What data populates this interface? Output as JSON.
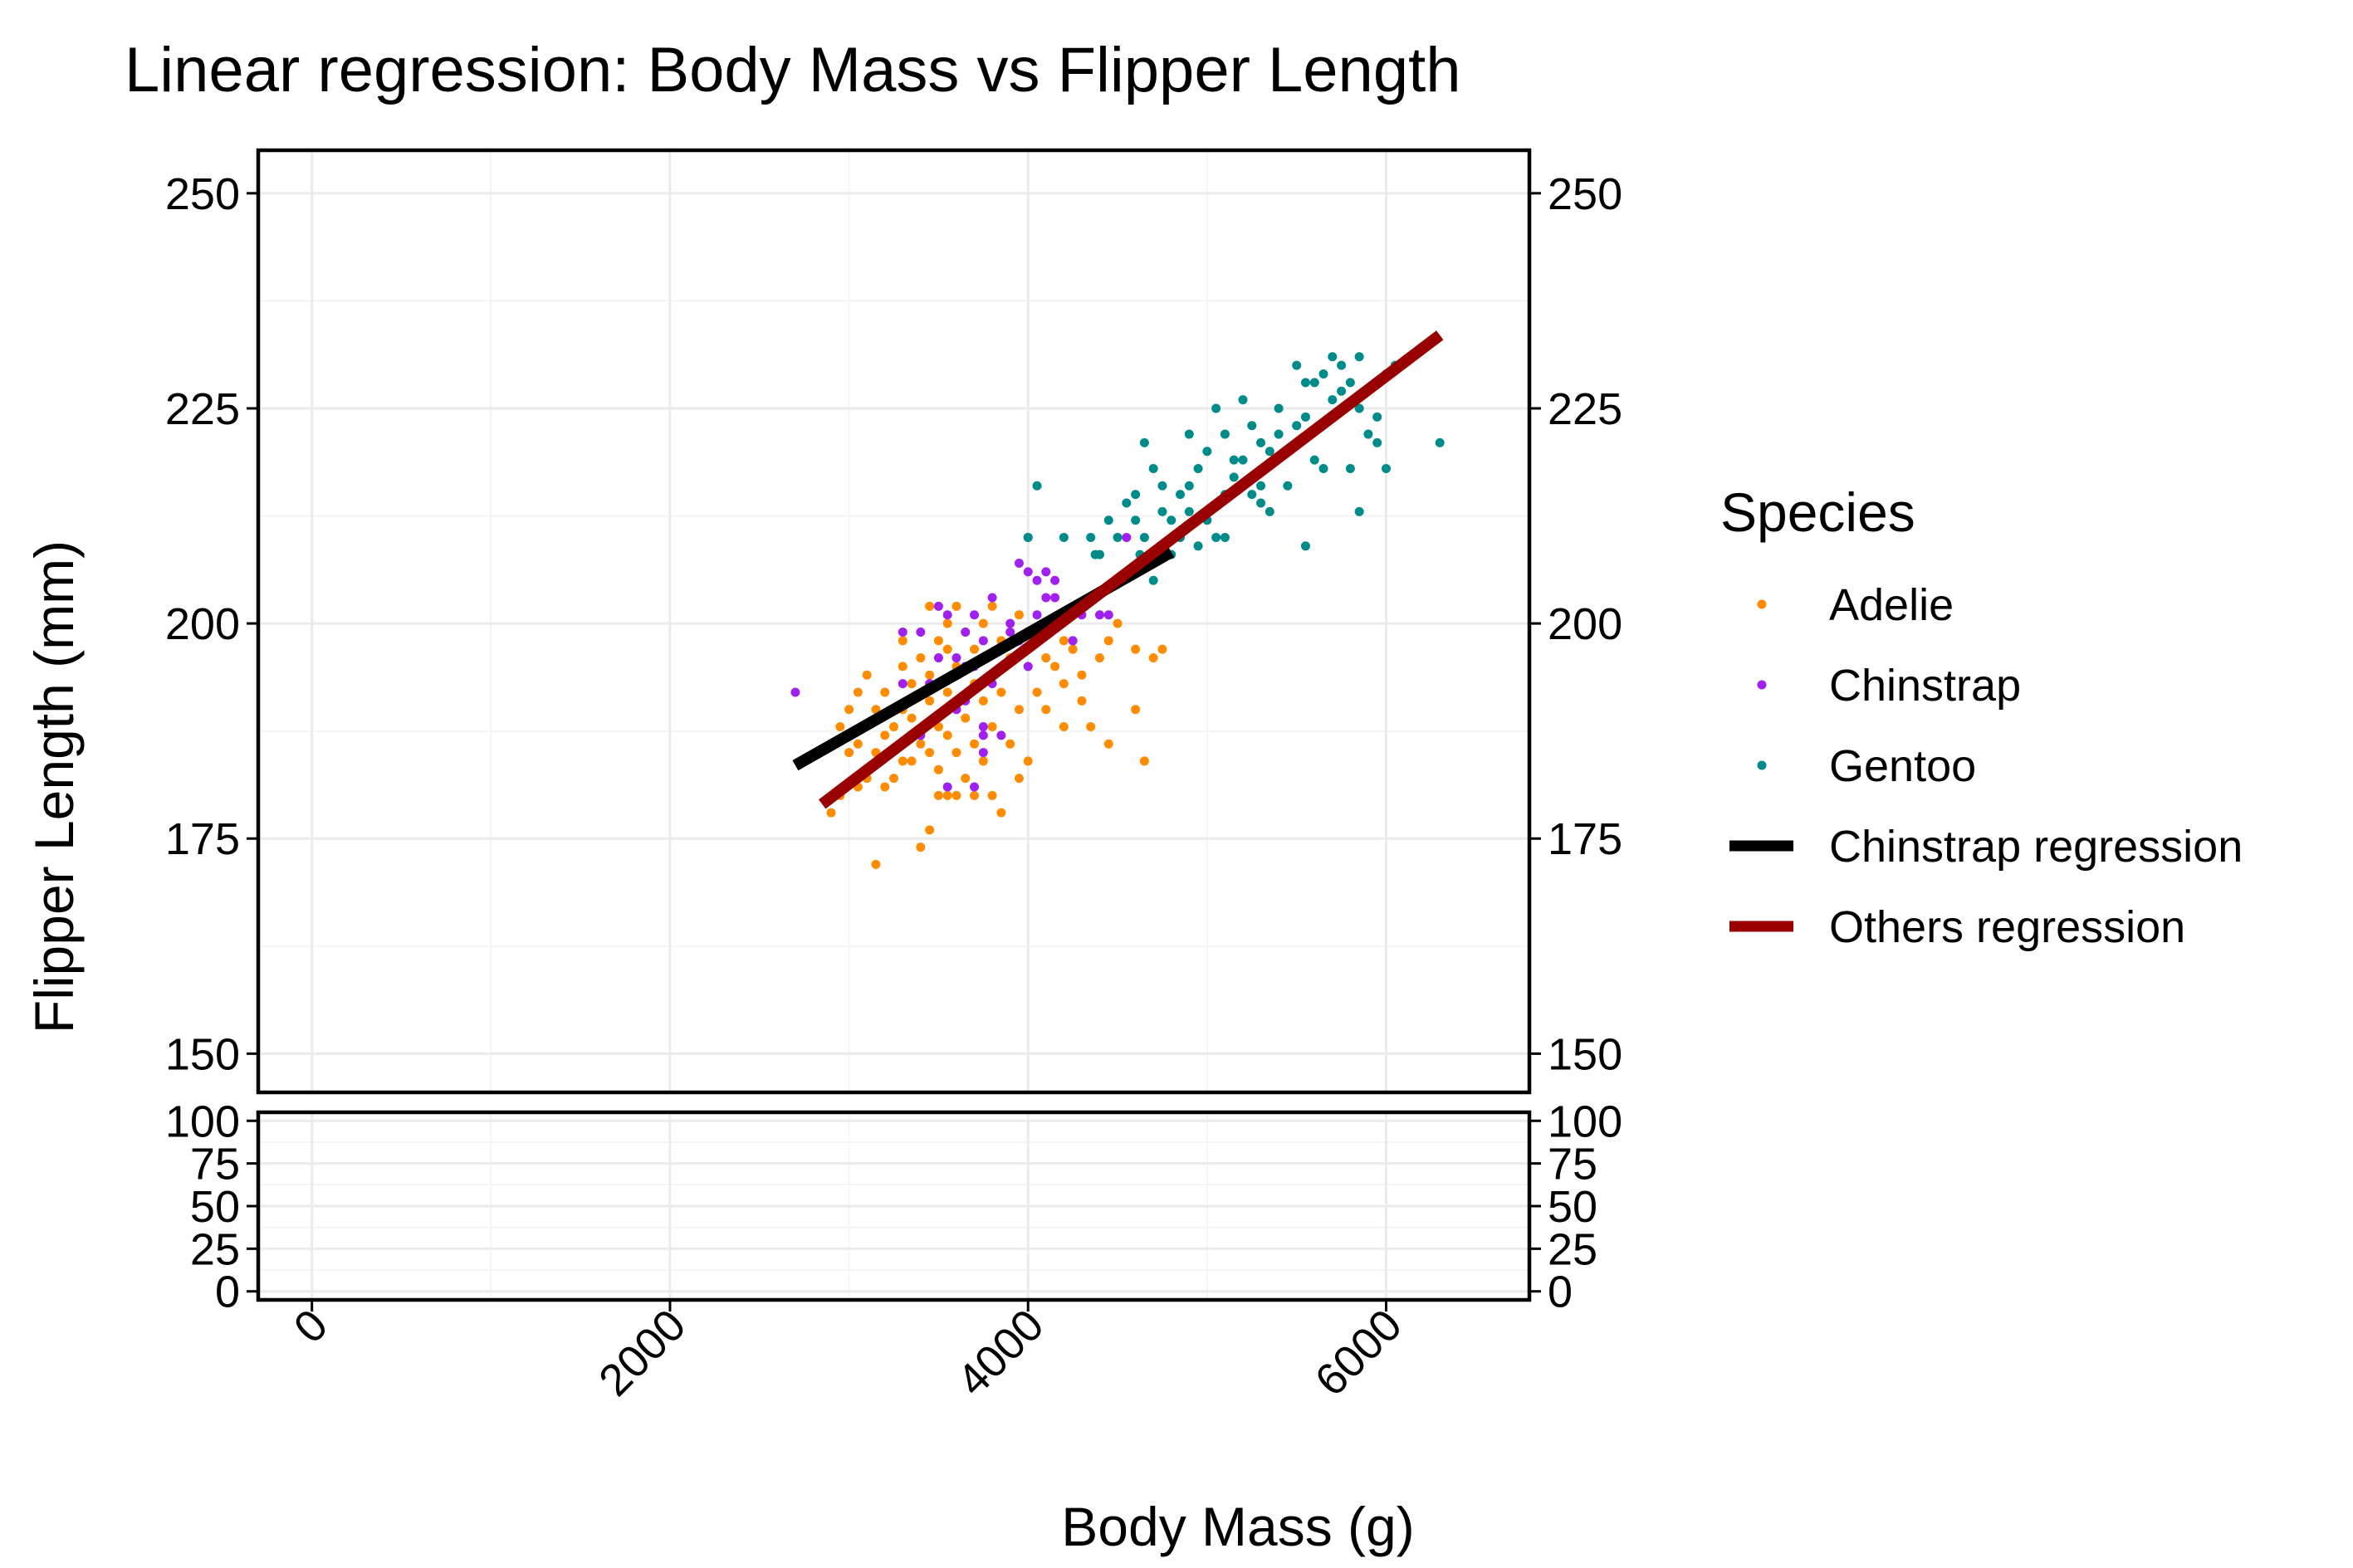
{
  "chart_data": {
    "type": "scatter",
    "title": "Linear regression: Body Mass vs Flipper Length",
    "xlabel": "Body Mass (g)",
    "ylabel": "Flipper Length (mm)",
    "x_ticks": [
      "0",
      "2000",
      "4000",
      "6000"
    ],
    "x_tick_values": [
      0,
      2000,
      4000,
      6000
    ],
    "xlim": [
      -300,
      6800
    ],
    "y_ticks": [
      "150",
      "175",
      "200",
      "225",
      "250"
    ],
    "y_tick_values": [
      150,
      175,
      200,
      225,
      250
    ],
    "ylim": [
      145.5,
      255
    ],
    "lower_panel": {
      "y_ticks": [
        "0",
        "25",
        "50",
        "75",
        "100"
      ],
      "y_tick_values": [
        0,
        25,
        50,
        75,
        100
      ],
      "ylim": [
        -5,
        105
      ]
    },
    "grid": true,
    "legend_title": "Species",
    "legend_position": "right",
    "colors": {
      "Adelie": "#ff8c00",
      "Chinstrap": "#a020f0",
      "Gentoo": "#008b8b",
      "Chinstrap regression": "#000000",
      "Others regression": "#990000"
    },
    "series": [
      {
        "name": "Adelie",
        "kind": "points",
        "points": [
          [
            3150,
            172
          ],
          [
            3400,
            174
          ],
          [
            3450,
            176
          ],
          [
            2900,
            178
          ],
          [
            2950,
            180
          ],
          [
            3050,
            181
          ],
          [
            3200,
            181
          ],
          [
            3500,
            180
          ],
          [
            3550,
            180
          ],
          [
            3600,
            180
          ],
          [
            3700,
            180
          ],
          [
            3800,
            180
          ],
          [
            3850,
            178
          ],
          [
            3100,
            182
          ],
          [
            3250,
            182
          ],
          [
            3350,
            184
          ],
          [
            3500,
            183
          ],
          [
            3650,
            182
          ],
          [
            3950,
            182
          ],
          [
            3000,
            185
          ],
          [
            3150,
            185
          ],
          [
            3300,
            184
          ],
          [
            3450,
            185
          ],
          [
            3600,
            185
          ],
          [
            3750,
            184
          ],
          [
            4000,
            184
          ],
          [
            4650,
            184
          ],
          [
            2900,
            186
          ],
          [
            3050,
            186
          ],
          [
            3200,
            187
          ],
          [
            3400,
            186
          ],
          [
            3550,
            187
          ],
          [
            3700,
            186
          ],
          [
            3900,
            186
          ],
          [
            4450,
            186
          ],
          [
            2950,
            188
          ],
          [
            3250,
            188
          ],
          [
            3350,
            189
          ],
          [
            3500,
            188
          ],
          [
            3650,
            189
          ],
          [
            3800,
            188
          ],
          [
            4200,
            188
          ],
          [
            4350,
            188
          ],
          [
            3000,
            190
          ],
          [
            3150,
            190
          ],
          [
            3300,
            190
          ],
          [
            3450,
            191
          ],
          [
            3600,
            190
          ],
          [
            3750,
            191
          ],
          [
            3950,
            190
          ],
          [
            4100,
            190
          ],
          [
            4300,
            191
          ],
          [
            4600,
            190
          ],
          [
            3050,
            192
          ],
          [
            3200,
            192
          ],
          [
            3350,
            193
          ],
          [
            3550,
            192
          ],
          [
            3700,
            193
          ],
          [
            3850,
            192
          ],
          [
            4050,
            192
          ],
          [
            4200,
            193
          ],
          [
            3100,
            194
          ],
          [
            3300,
            195
          ],
          [
            3450,
            194
          ],
          [
            3600,
            195
          ],
          [
            3800,
            194
          ],
          [
            4000,
            195
          ],
          [
            4150,
            195
          ],
          [
            4300,
            194
          ],
          [
            4700,
            196
          ],
          [
            3400,
            196
          ],
          [
            3550,
            197
          ],
          [
            3700,
            197
          ],
          [
            3900,
            196
          ],
          [
            4100,
            196
          ],
          [
            4250,
            197
          ],
          [
            4400,
            196
          ],
          [
            4600,
            197
          ],
          [
            4750,
            197
          ],
          [
            3300,
            198
          ],
          [
            3500,
            198
          ],
          [
            3650,
            199
          ],
          [
            3850,
            198
          ],
          [
            4050,
            199
          ],
          [
            4200,
            198
          ],
          [
            4450,
            198
          ],
          [
            3550,
            200
          ],
          [
            3750,
            200
          ],
          [
            3950,
            201
          ],
          [
            4500,
            200
          ],
          [
            3600,
            202
          ],
          [
            3800,
            202
          ],
          [
            3450,
            202
          ]
        ]
      },
      {
        "name": "Chinstrap",
        "kind": "points",
        "points": [
          [
            3550,
            181
          ],
          [
            3700,
            181
          ],
          [
            3750,
            187
          ],
          [
            3400,
            187
          ],
          [
            2700,
            192
          ],
          [
            3300,
            193
          ],
          [
            3450,
            193
          ],
          [
            3500,
            196
          ],
          [
            3600,
            196
          ],
          [
            3650,
            191
          ],
          [
            3700,
            195
          ],
          [
            3750,
            198
          ],
          [
            3800,
            193
          ],
          [
            3850,
            197
          ],
          [
            3900,
            199
          ],
          [
            3950,
            198
          ],
          [
            4000,
            195
          ],
          [
            4050,
            201
          ],
          [
            4100,
            203
          ],
          [
            4150,
            203
          ],
          [
            4250,
            198
          ],
          [
            4300,
            201
          ],
          [
            4400,
            201
          ],
          [
            4450,
            201
          ],
          [
            3400,
            199
          ],
          [
            3550,
            201
          ],
          [
            3650,
            199
          ],
          [
            3700,
            201
          ],
          [
            3800,
            203
          ],
          [
            3850,
            197
          ],
          [
            4000,
            206
          ],
          [
            4050,
            205
          ],
          [
            4150,
            205
          ],
          [
            4000,
            210
          ],
          [
            3950,
            207
          ],
          [
            3300,
            199
          ],
          [
            3500,
            202
          ],
          [
            3600,
            190
          ],
          [
            3750,
            188
          ],
          [
            3850,
            187
          ],
          [
            4100,
            206
          ],
          [
            4200,
            201
          ],
          [
            4550,
            210
          ],
          [
            3650,
            195
          ],
          [
            3750,
            185
          ],
          [
            3575,
            194
          ],
          [
            3900,
            200
          ]
        ]
      },
      {
        "name": "Gentoo",
        "kind": "points",
        "points": [
          [
            4050,
            216
          ],
          [
            4350,
            210
          ],
          [
            4400,
            208
          ],
          [
            4500,
            210
          ],
          [
            4550,
            214
          ],
          [
            4600,
            212
          ],
          [
            4650,
            210
          ],
          [
            4700,
            218
          ],
          [
            4750,
            216
          ],
          [
            4800,
            212
          ],
          [
            4850,
            215
          ],
          [
            4900,
            216
          ],
          [
            4950,
            218
          ],
          [
            5000,
            212
          ],
          [
            5050,
            210
          ],
          [
            5100,
            215
          ],
          [
            5150,
            217
          ],
          [
            5200,
            219
          ],
          [
            5250,
            215
          ],
          [
            5300,
            221
          ],
          [
            5350,
            213
          ],
          [
            5400,
            222
          ],
          [
            5450,
            216
          ],
          [
            5500,
            221
          ],
          [
            5550,
            224
          ],
          [
            5600,
            228
          ],
          [
            5650,
            229
          ],
          [
            5700,
            226
          ],
          [
            5750,
            230
          ],
          [
            5800,
            228
          ],
          [
            5850,
            225
          ],
          [
            5900,
            222
          ],
          [
            5950,
            221
          ],
          [
            6000,
            229
          ],
          [
            6050,
            230
          ],
          [
            6300,
            221
          ],
          [
            4375,
            208
          ],
          [
            4450,
            212
          ],
          [
            4625,
            208
          ],
          [
            4700,
            205
          ],
          [
            4750,
            213
          ],
          [
            4800,
            208
          ],
          [
            4850,
            210
          ],
          [
            4900,
            213
          ],
          [
            4950,
            209
          ],
          [
            5000,
            220
          ],
          [
            5050,
            225
          ],
          [
            5100,
            222
          ],
          [
            5150,
            219
          ],
          [
            5200,
            226
          ],
          [
            5250,
            223
          ],
          [
            5300,
            214
          ],
          [
            5350,
            220
          ],
          [
            5400,
            225
          ],
          [
            5450,
            220
          ],
          [
            5500,
            223
          ],
          [
            5550,
            209
          ],
          [
            5600,
            219
          ],
          [
            5650,
            218
          ],
          [
            5700,
            231
          ],
          [
            5750,
            227
          ],
          [
            5800,
            218
          ],
          [
            5850,
            213
          ],
          [
            5950,
            224
          ],
          [
            6000,
            218
          ],
          [
            4000,
            210
          ],
          [
            4200,
            210
          ],
          [
            4600,
            215
          ],
          [
            4650,
            221
          ],
          [
            4900,
            222
          ],
          [
            5100,
            210
          ],
          [
            5200,
            216
          ],
          [
            5300,
            216
          ],
          [
            5500,
            230
          ],
          [
            5550,
            228
          ],
          [
            5850,
            231
          ]
        ]
      },
      {
        "name": "Chinstrap regression",
        "kind": "line",
        "points": [
          [
            2700,
            183.5
          ],
          [
            4800,
            208.3
          ]
        ]
      },
      {
        "name": "Others regression",
        "kind": "line",
        "points": [
          [
            2850,
            179
          ],
          [
            6300,
            233.5
          ]
        ]
      }
    ]
  }
}
